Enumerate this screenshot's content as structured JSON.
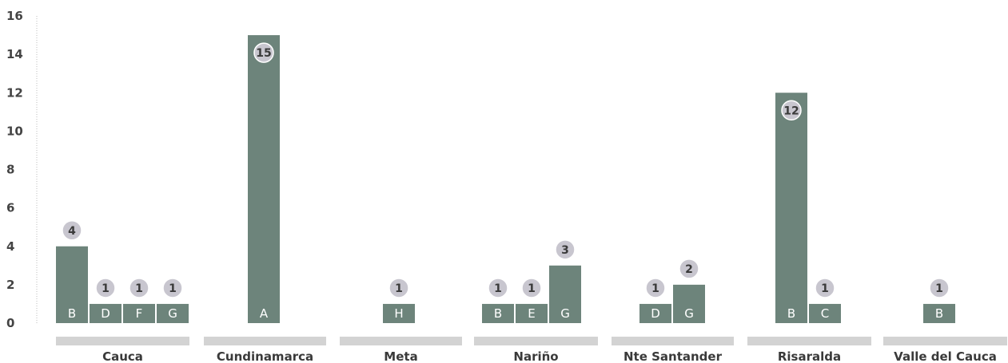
{
  "chart_data": {
    "type": "bar",
    "title": "",
    "xlabel": "",
    "ylabel": "",
    "ylim": [
      0,
      16
    ],
    "yticks": [
      0,
      2,
      4,
      6,
      8,
      10,
      12,
      14,
      16
    ],
    "grid": false,
    "legend": "none",
    "colors": {
      "bar": "#6d847b",
      "group_band": "#d3d3d3",
      "value_badge": "#c8c6cf",
      "axis": "#bdbdbd"
    },
    "groups": [
      {
        "name": "Cauca",
        "bars": [
          {
            "label": "B",
            "value": 4
          },
          {
            "label": "D",
            "value": 1
          },
          {
            "label": "F",
            "value": 1
          },
          {
            "label": "G",
            "value": 1
          }
        ]
      },
      {
        "name": "Cundinamarca",
        "bars": [
          {
            "label": "A",
            "value": 15
          }
        ]
      },
      {
        "name": "Meta",
        "bars": [
          {
            "label": "H",
            "value": 1
          }
        ]
      },
      {
        "name": "Nariño",
        "bars": [
          {
            "label": "B",
            "value": 1
          },
          {
            "label": "E",
            "value": 1
          },
          {
            "label": "G",
            "value": 3
          }
        ]
      },
      {
        "name": "Nte Santander",
        "bars": [
          {
            "label": "D",
            "value": 1
          },
          {
            "label": "G",
            "value": 2
          }
        ]
      },
      {
        "name": "Risaralda",
        "bars": [
          {
            "label": "B",
            "value": 12
          },
          {
            "label": "C",
            "value": 1
          }
        ]
      },
      {
        "name": "Valle del Cauca",
        "bars": [
          {
            "label": "B",
            "value": 1
          }
        ]
      }
    ]
  }
}
